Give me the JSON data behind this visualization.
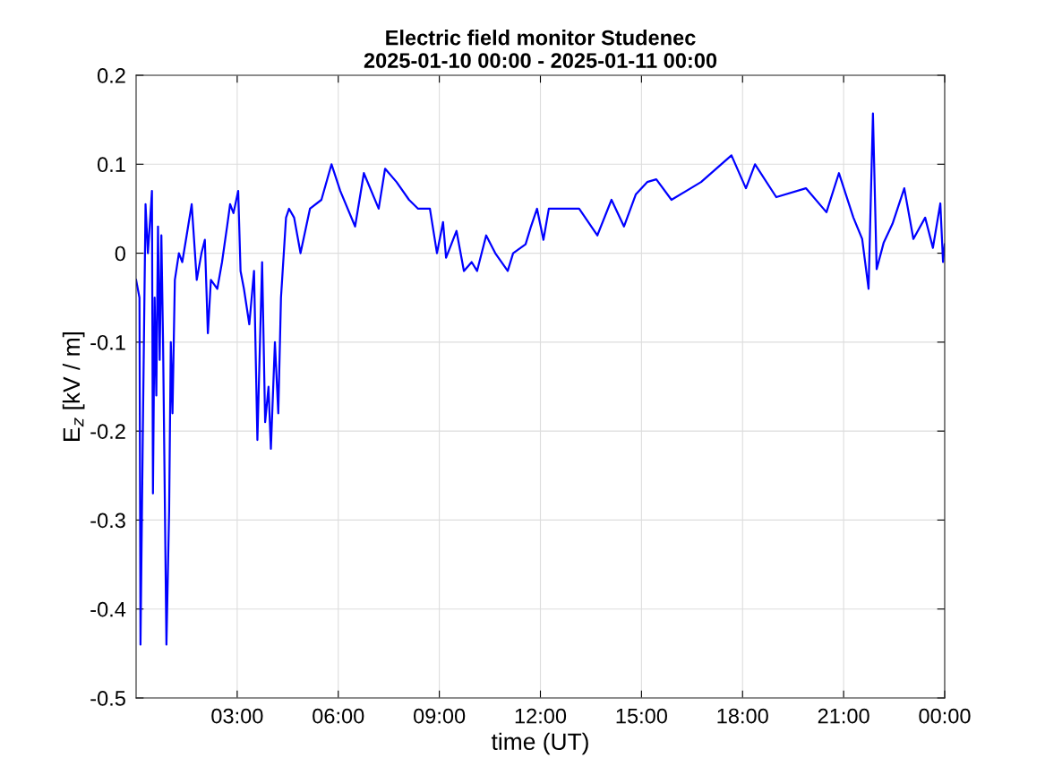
{
  "chart_data": {
    "type": "line",
    "title": "Electric field monitor Studenec\n2025-01-10 00:00 - 2025-01-11 00:00",
    "xlabel": "time (UT)",
    "ylabel": "E$_{z}$ [kV / m]",
    "x": [
      0.0,
      0.1,
      0.13,
      0.2,
      0.28,
      0.35,
      0.42,
      0.47,
      0.5,
      0.55,
      0.6,
      0.65,
      0.7,
      0.75,
      0.8,
      0.9,
      0.98,
      1.03,
      1.08,
      1.15,
      1.27,
      1.37,
      1.5,
      1.65,
      1.8,
      1.94,
      2.04,
      2.13,
      2.22,
      2.41,
      2.55,
      2.7,
      2.79,
      2.89,
      3.03,
      3.1,
      3.2,
      3.36,
      3.5,
      3.6,
      3.74,
      3.83,
      3.93,
      4.0,
      4.12,
      4.22,
      4.3,
      4.45,
      4.54,
      4.69,
      4.88,
      5.16,
      5.5,
      5.8,
      6.06,
      6.5,
      6.76,
      7.2,
      7.39,
      7.73,
      8.1,
      8.37,
      8.72,
      8.93,
      9.11,
      9.2,
      9.51,
      9.73,
      9.96,
      10.12,
      10.39,
      10.66,
      11.03,
      11.19,
      11.56,
      11.72,
      11.9,
      12.09,
      12.25,
      12.78,
      13.15,
      13.69,
      14.11,
      14.48,
      14.83,
      15.17,
      15.44,
      15.89,
      16.77,
      17.67,
      18.1,
      18.37,
      19.0,
      19.88,
      20.49,
      20.86,
      21.29,
      21.55,
      21.74,
      21.87,
      21.98,
      22.19,
      22.45,
      22.8,
      23.07,
      23.42,
      23.65,
      23.87,
      23.95,
      24.0
    ],
    "series": [
      {
        "color": "#0000ff",
        "values": [
          -0.03,
          -0.05,
          -0.44,
          -0.2,
          0.055,
          0.0,
          0.04,
          0.07,
          -0.27,
          -0.05,
          -0.16,
          0.03,
          -0.12,
          0.02,
          -0.1,
          -0.44,
          -0.29,
          -0.1,
          -0.18,
          -0.03,
          0.0,
          -0.01,
          0.02,
          0.055,
          -0.03,
          0.0,
          0.015,
          -0.09,
          -0.03,
          -0.04,
          -0.01,
          0.03,
          0.055,
          0.045,
          0.07,
          -0.02,
          -0.04,
          -0.08,
          -0.02,
          -0.21,
          -0.01,
          -0.19,
          -0.15,
          -0.22,
          -0.1,
          -0.18,
          -0.05,
          0.04,
          0.05,
          0.04,
          0.0,
          0.05,
          0.06,
          0.1,
          0.07,
          0.03,
          0.09,
          0.05,
          0.095,
          0.08,
          0.06,
          0.05,
          0.05,
          0.0,
          0.035,
          -0.005,
          0.025,
          -0.02,
          -0.01,
          -0.02,
          0.02,
          0.0,
          -0.02,
          0.0,
          0.01,
          0.03,
          0.05,
          0.015,
          0.05,
          0.05,
          0.05,
          0.02,
          0.06,
          0.03,
          0.066,
          0.08,
          0.083,
          0.06,
          0.08,
          0.11,
          0.073,
          0.1,
          0.063,
          0.073,
          0.046,
          0.09,
          0.04,
          0.016,
          -0.04,
          0.157,
          -0.018,
          0.012,
          0.033,
          0.073,
          0.016,
          0.04,
          0.006,
          0.056,
          -0.01,
          0.01
        ]
      }
    ],
    "xlim": [
      0,
      24
    ],
    "xticks": [
      {
        "value": 3,
        "label": "03:00"
      },
      {
        "value": 6,
        "label": "06:00"
      },
      {
        "value": 9,
        "label": "09:00"
      },
      {
        "value": 12,
        "label": "12:00"
      },
      {
        "value": 15,
        "label": "15:00"
      },
      {
        "value": 18,
        "label": "18:00"
      },
      {
        "value": 21,
        "label": "21:00"
      },
      {
        "value": 24,
        "label": "00:00"
      }
    ],
    "ylim": [
      -0.5,
      0.2
    ],
    "yticks": [
      {
        "value": -0.5,
        "label": "-0.5"
      },
      {
        "value": -0.4,
        "label": "-0.4"
      },
      {
        "value": -0.3,
        "label": "-0.3"
      },
      {
        "value": -0.2,
        "label": "-0.2"
      },
      {
        "value": -0.1,
        "label": "-0.1"
      },
      {
        "value": 0,
        "label": "0"
      },
      {
        "value": 0.1,
        "label": "0.1"
      },
      {
        "value": 0.2,
        "label": "0.2"
      }
    ],
    "grid": true
  }
}
